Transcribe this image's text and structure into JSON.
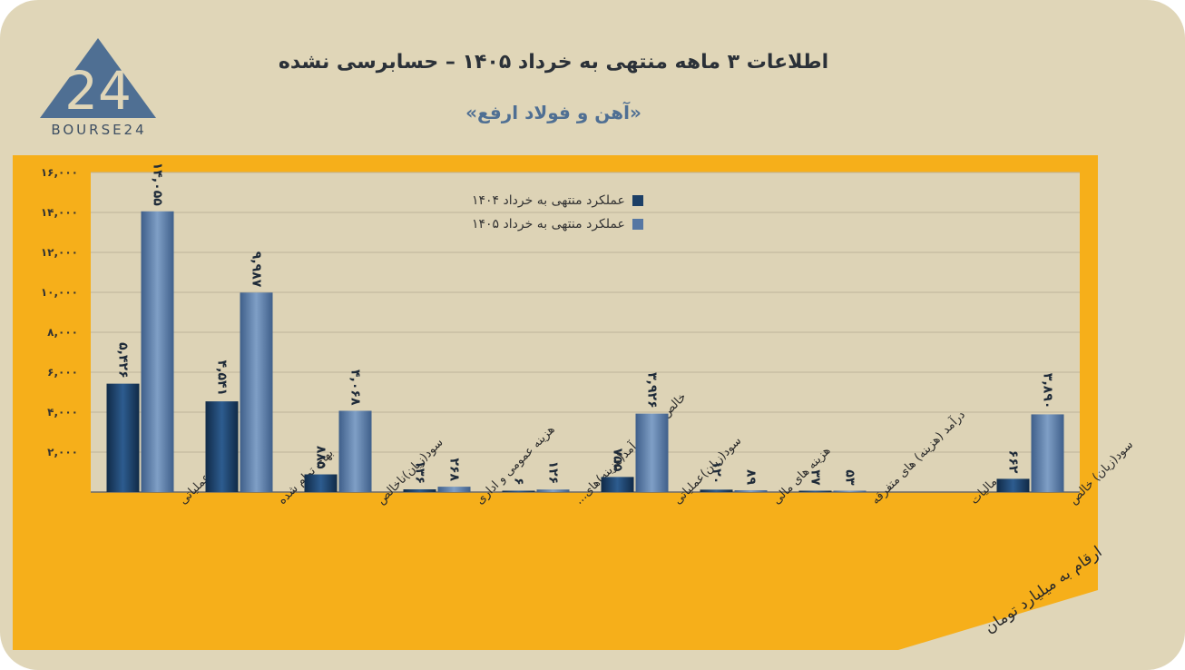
{
  "header": {
    "title": "اطلاعات ۳ ماهه منتهی به خرداد ۱۴۰۵ – حسابرسی نشده",
    "subtitle": "«آهن و فولاد ارفع»",
    "logo_text": "BOURSE24",
    "logo_mark": "24"
  },
  "footer": {
    "units_note": "ارقام به میلیارد تومان"
  },
  "colors": {
    "background": "#e0d6b8",
    "panel": "#f6af1a",
    "plot": "#ddd3b6",
    "series_1404": "#1c3f66",
    "series_1405": "#5677a3",
    "logo": "#4f6f93"
  },
  "chart_data": {
    "type": "bar",
    "ylim": [
      0,
      16000
    ],
    "yticks": [
      2000,
      4000,
      6000,
      8000,
      10000,
      12000,
      14000,
      16000
    ],
    "ytick_labels": [
      "۲,۰۰۰",
      "۴,۰۰۰",
      "۶,۰۰۰",
      "۸,۰۰۰",
      "۱۰,۰۰۰",
      "۱۲,۰۰۰",
      "۱۴,۰۰۰",
      "۱۶,۰۰۰"
    ],
    "grid": true,
    "legend_position": "top-center",
    "categories": [
      "درآمد عملیاتی",
      "بهای تمام شده",
      "سود(زیان)ناخالص",
      "هزینه عمومی و اداری",
      "خالص سایر درآمد(هزینه)های...",
      "سود(زیان)عملیاتی",
      "هزینه های مالی",
      "درآمد (هزینه) های متفرقه",
      "مالیات",
      "سود(زیان) خالص"
    ],
    "series": [
      {
        "name": "عملکرد منتهی به خرداد ۱۴۰۴",
        "values": [
          5426,
          4541,
          885,
          136,
          6,
          755,
          120,
          37,
          null,
          662
        ],
        "labels": [
          "۵,۴۲۶",
          "۴,۵۴۱",
          "۸۸۵",
          "۱۳۶",
          "۶",
          "۷۵۵",
          "۱۲۰",
          "۳۷",
          "",
          "۶۶۲"
        ]
      },
      {
        "name": "عملکرد منتهی به خرداد ۱۴۰۵",
        "values": [
          14055,
          9987,
          4068,
          268,
          126,
          3926,
          89,
          53,
          null,
          3890
        ],
        "labels": [
          "۱۴,۰۵۵",
          "۹,۹۸۷",
          "۴,۰۶۸",
          "۲۶۸",
          "۱۲۶",
          "۳,۹۲۶",
          "۸۹",
          "۵۳",
          "",
          "۳,۸۹۰"
        ]
      }
    ]
  }
}
